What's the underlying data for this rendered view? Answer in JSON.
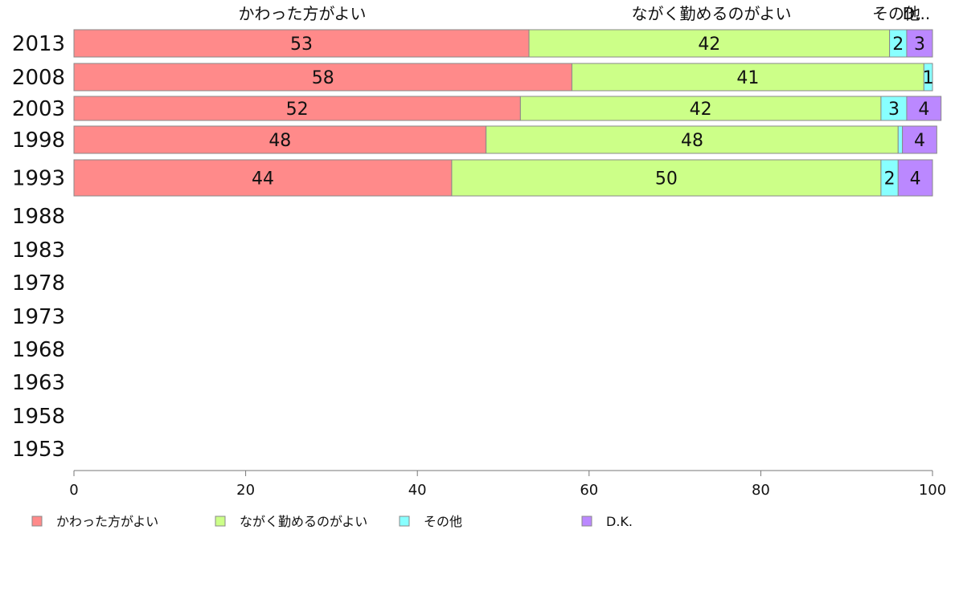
{
  "chart_data": {
    "type": "bar",
    "orientation": "horizontal-stacked",
    "categories": [
      "2013",
      "2008",
      "2003",
      "1998",
      "1993",
      "1988",
      "1983",
      "1978",
      "1973",
      "1968",
      "1963",
      "1958",
      "1953"
    ],
    "series": [
      {
        "name": "かわった方がよい",
        "color": "#ff8a8a",
        "values": [
          53,
          58,
          52,
          48,
          44,
          null,
          null,
          null,
          null,
          null,
          null,
          null,
          null
        ]
      },
      {
        "name": "ながく勤めるのがよい",
        "color": "#ccff88",
        "values": [
          42,
          41,
          42,
          48,
          50,
          null,
          null,
          null,
          null,
          null,
          null,
          null,
          null
        ]
      },
      {
        "name": "その他",
        "color": "#88ffff",
        "values": [
          2,
          1,
          3,
          0.5,
          2,
          null,
          null,
          null,
          null,
          null,
          null,
          null,
          null
        ]
      },
      {
        "name": "D.K.",
        "color": "#bb88ff",
        "values": [
          3,
          0,
          4,
          4,
          4,
          null,
          null,
          null,
          null,
          null,
          null,
          null,
          null
        ]
      }
    ],
    "data_labels": [
      [
        "53",
        "42",
        "2",
        "3"
      ],
      [
        "58",
        "41",
        "1",
        ""
      ],
      [
        "52",
        "42",
        "3",
        "4"
      ],
      [
        "48",
        "48",
        "",
        "4"
      ],
      [
        "44",
        "50",
        "2",
        "4"
      ]
    ],
    "top_labels": [
      "かわった方がよい",
      "ながく勤めるのがよい",
      "その他",
      "D..."
    ],
    "xlim": [
      0,
      100
    ],
    "xticks": [
      "0",
      "20",
      "40",
      "60",
      "80",
      "100"
    ],
    "legend": {
      "placement": "bottom"
    },
    "grid": false
  }
}
